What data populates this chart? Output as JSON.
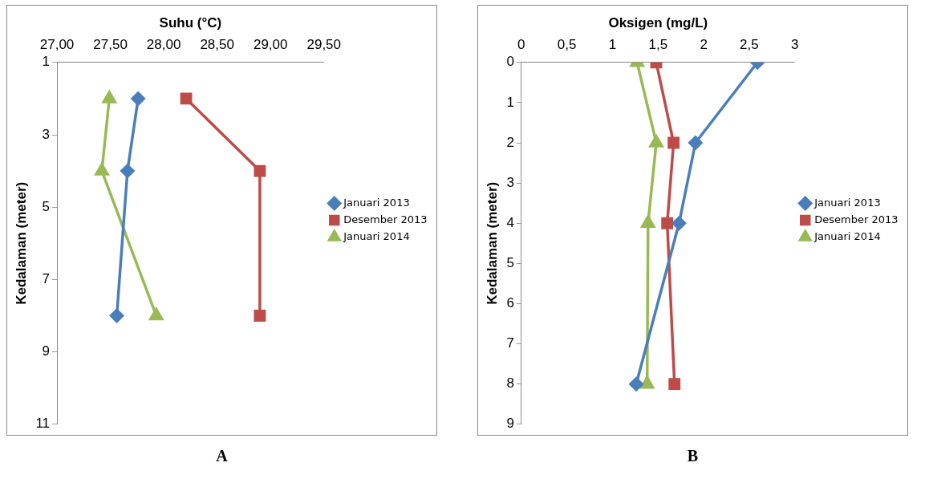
{
  "chart_data": [
    {
      "type": "line",
      "xlabel": "Suhu (°C)",
      "ylabel": "Kedalaman (meter)",
      "annotations": [
        "A"
      ],
      "legend": "right",
      "grid": false,
      "xlim": [
        27,
        29.5
      ],
      "xticks": [
        {
          "value": 27,
          "label": "27,00"
        },
        {
          "value": 27.5,
          "label": "27,50"
        },
        {
          "value": 28,
          "label": "28,00"
        },
        {
          "value": 28.5,
          "label": "28,50"
        },
        {
          "value": 29,
          "label": "29,00"
        },
        {
          "value": 29.5,
          "label": "29,50"
        }
      ],
      "ylim": [
        11,
        1
      ],
      "yticks": [
        1,
        3,
        5,
        7,
        9,
        11
      ],
      "series": [
        {
          "name": "Januari 2013",
          "color": "#4a7ebb",
          "marker": "diamond",
          "x": [
            27.76,
            27.66,
            27.56
          ],
          "values": [
            2,
            4,
            8
          ]
        },
        {
          "name": "Desember 2013",
          "color": "#be4b48",
          "marker": "square",
          "x": [
            28.21,
            28.9,
            28.9
          ],
          "values": [
            2,
            4,
            8
          ]
        },
        {
          "name": "Januari 2014",
          "color": "#98b954",
          "marker": "triangle",
          "x": [
            27.49,
            27.42,
            27.93
          ],
          "values": [
            2,
            4,
            8
          ]
        }
      ]
    },
    {
      "type": "line",
      "xlabel": "Oksigen (mg/L)",
      "ylabel": "Kedalaman (meter)",
      "annotations": [
        "B"
      ],
      "legend": "right",
      "grid": false,
      "xlim": [
        0,
        3
      ],
      "xticks": [
        0,
        {
          "value": 0.5,
          "label": "0,5"
        },
        1,
        {
          "value": 1.5,
          "label": "1,5"
        },
        2,
        {
          "value": 2.5,
          "label": "2,5"
        },
        3
      ],
      "ylim": [
        9,
        0
      ],
      "yticks": [
        0,
        1,
        2,
        3,
        4,
        5,
        6,
        7,
        8,
        9
      ],
      "series": [
        {
          "name": "Januari 2013",
          "color": "#4a7ebb",
          "marker": "diamond",
          "x": [
            2.59,
            1.91,
            1.73,
            1.26
          ],
          "values": [
            0,
            2,
            4,
            8
          ]
        },
        {
          "name": "Desember 2013",
          "color": "#be4b48",
          "marker": "square",
          "x": [
            1.48,
            1.67,
            1.6,
            1.68
          ],
          "values": [
            0,
            2,
            4,
            8
          ]
        },
        {
          "name": "Januari 2014",
          "color": "#98b954",
          "marker": "triangle",
          "x": [
            1.27,
            1.48,
            1.39,
            1.38
          ],
          "values": [
            0,
            2,
            4,
            8
          ]
        }
      ]
    }
  ]
}
